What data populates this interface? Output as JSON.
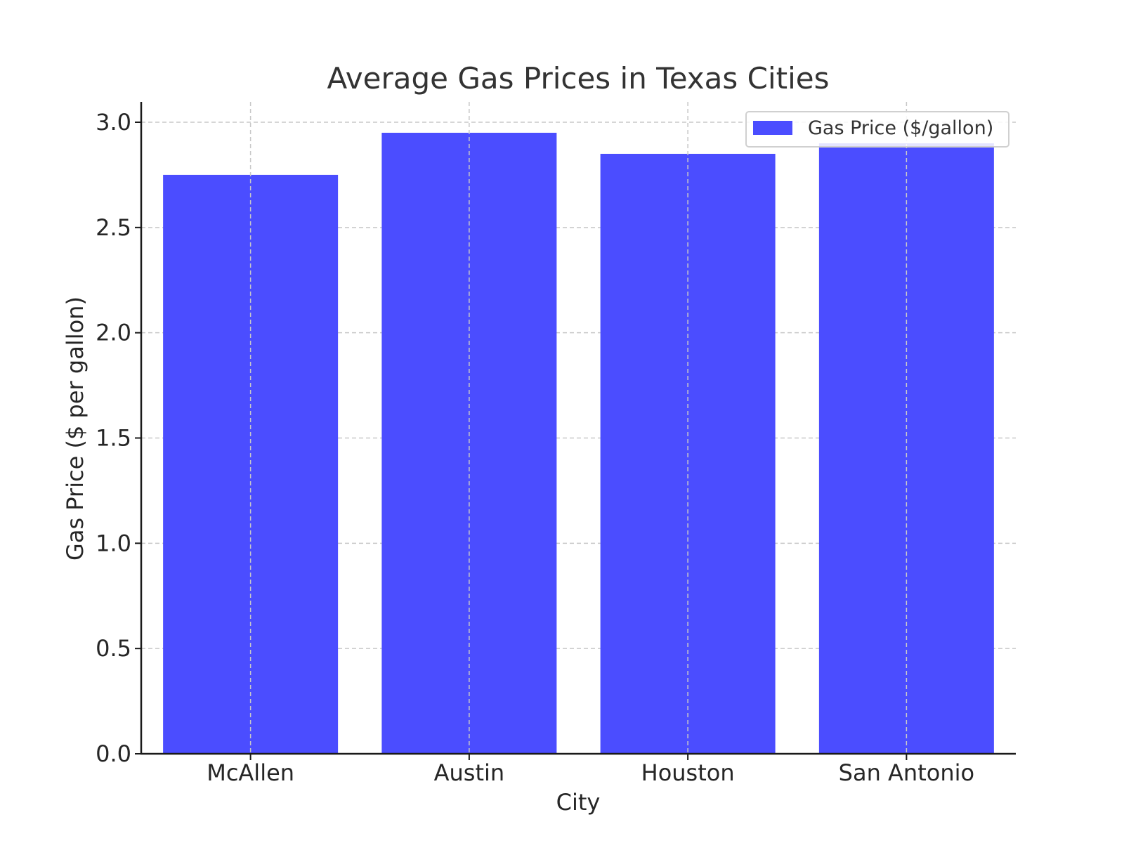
{
  "chart_data": {
    "type": "bar",
    "title": "Average Gas Prices in Texas Cities",
    "xlabel": "City",
    "ylabel": "Gas Price ($ per gallon)",
    "categories": [
      "McAllen",
      "Austin",
      "Houston",
      "San Antonio"
    ],
    "series": [
      {
        "name": "Gas Price ($/gallon)",
        "values": [
          2.75,
          2.95,
          2.85,
          2.9
        ],
        "color": "#4b4dff"
      }
    ],
    "ylim": [
      0,
      3.1
    ],
    "yticks": [
      "0.0",
      "0.5",
      "1.0",
      "1.5",
      "2.0",
      "2.5",
      "3.0"
    ],
    "grid": true,
    "legend_position": "top-right"
  }
}
